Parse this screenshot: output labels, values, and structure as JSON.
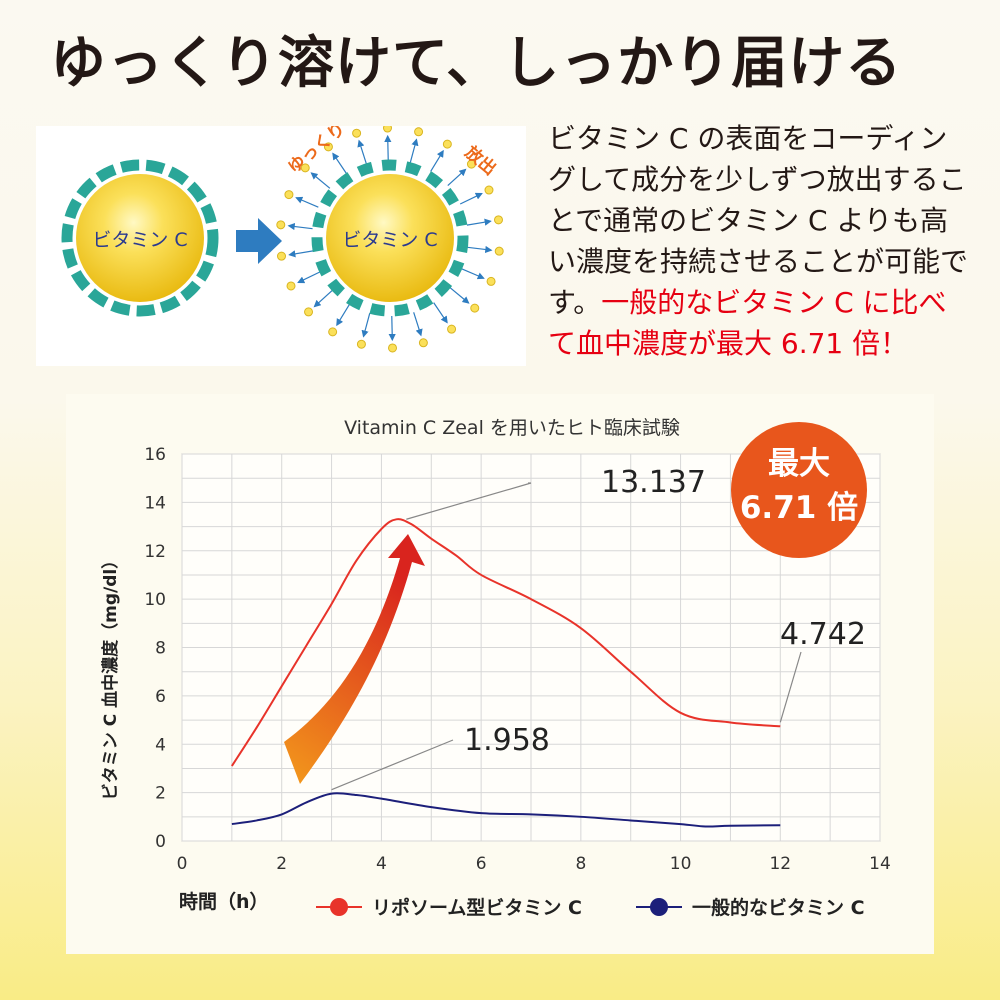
{
  "headline": "ゆっくり溶けて、しっかり届ける",
  "illustration": {
    "left_label": "ビタミン C",
    "right_label": "ビタミン C",
    "slow_label": "ゆっくり",
    "release_label": "放出",
    "colors": {
      "core": "#f3c81c",
      "ring": "#2aa698",
      "arrow": "#2e7cc0",
      "accent": "#ec6a1b"
    }
  },
  "description": {
    "normal": "ビタミン C の表面をコーディングして成分を少しずつ放出することで通常のビタミン C よりも高い濃度を持続させることが可能です。",
    "highlight": "一般的なビタミン C に比べて血中濃度が最大 6.71 倍！"
  },
  "badge": {
    "line1": "最大",
    "line2": "6.71 倍",
    "color": "#e8561c"
  },
  "chart_data": {
    "type": "line",
    "title": "Vitamin C Zeal を用いたヒト臨床試験",
    "xlabel": "時間（h）",
    "ylabel": "ビタミン C 血中濃度（mg/dl）",
    "xlim": [
      0,
      14
    ],
    "ylim": [
      0,
      16
    ],
    "xticks": [
      0,
      2,
      4,
      6,
      8,
      10,
      12,
      14
    ],
    "yticks": [
      0,
      2,
      4,
      6,
      8,
      10,
      12,
      14,
      16
    ],
    "grid": true,
    "legend_position": "bottom",
    "series": [
      {
        "name": "リポソーム型ビタミン C",
        "color": "#e8332a",
        "x": [
          1,
          1.5,
          2,
          2.5,
          3,
          3.5,
          4,
          4.3,
          4.6,
          5,
          5.5,
          6,
          7,
          8,
          9,
          10,
          11,
          12
        ],
        "y": [
          3.1,
          4.7,
          6.4,
          8.1,
          9.8,
          11.6,
          12.9,
          13.3,
          13.1,
          12.5,
          11.8,
          11.0,
          10.0,
          8.8,
          7.0,
          5.3,
          4.9,
          4.742
        ]
      },
      {
        "name": "一般的なビタミン C",
        "color": "#1c1f7a",
        "x": [
          1,
          1.5,
          2,
          2.5,
          3,
          3.5,
          4,
          5,
          6,
          7,
          8,
          9,
          10,
          10.5,
          11,
          12
        ],
        "y": [
          0.7,
          0.85,
          1.1,
          1.6,
          1.958,
          1.9,
          1.75,
          1.4,
          1.15,
          1.1,
          1.0,
          0.85,
          0.7,
          0.6,
          0.63,
          0.65
        ]
      }
    ],
    "annotations": [
      {
        "text": "13.137",
        "x": 4.5,
        "y": 13.137
      },
      {
        "text": "4.742",
        "x": 12,
        "y": 4.742
      },
      {
        "text": "1.958",
        "x": 3,
        "y": 1.958
      }
    ]
  }
}
